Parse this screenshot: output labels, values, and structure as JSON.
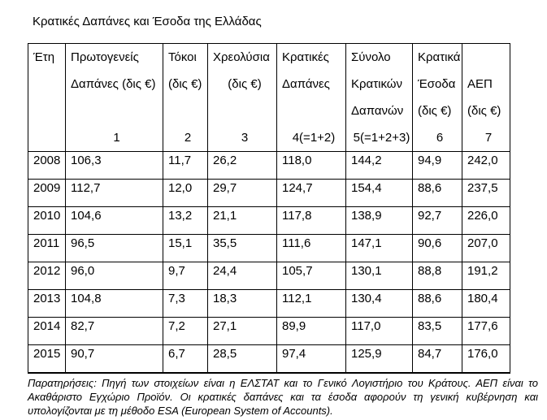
{
  "page": {
    "title": "Κρατικές Δαπάνες και Έσοδα της Ελλάδας"
  },
  "table": {
    "header_columns": [
      {
        "name": "eth",
        "lines": [
          "Έτη",
          "",
          "",
          ""
        ]
      },
      {
        "name": "protogeneis-dapanes",
        "lines": [
          "Πρωτογενείς",
          "Δαπάνες (δις €)",
          "",
          "1"
        ]
      },
      {
        "name": "tokoi",
        "lines": [
          "Τόκοι",
          "(δις €)",
          "",
          "2"
        ]
      },
      {
        "name": "xreolysia",
        "lines": [
          "Χρεολύσια",
          "(δις €)",
          "",
          "3"
        ]
      },
      {
        "name": "kratikes-dapanes",
        "lines": [
          "Κρατικές",
          "Δαπάνες",
          "",
          "4(=1+2)"
        ]
      },
      {
        "name": "synolo-kratikon-dapanon",
        "lines": [
          "Σύνολο",
          "Κρατικών",
          "Δαπανών",
          "5(=1+2+3)"
        ]
      },
      {
        "name": "kratika-esoda",
        "lines": [
          "Κρατικά",
          "Έσοδα",
          "(δις €)",
          "6"
        ]
      },
      {
        "name": "aep",
        "lines": [
          "",
          "ΑΕΠ",
          "(δις €)",
          "7"
        ]
      }
    ],
    "rows": [
      [
        "2008",
        "106,3",
        "11,7",
        "26,2",
        "118,0",
        "144,2",
        "94,9",
        "242,0"
      ],
      [
        "2009",
        "112,7",
        "12,0",
        "29,7",
        "124,7",
        "154,4",
        "88,6",
        "237,5"
      ],
      [
        "2010",
        "104,6",
        "13,2",
        "21,1",
        "117,8",
        "138,9",
        "92,7",
        "226,0"
      ],
      [
        "2011",
        "96,5",
        "15,1",
        "35,5",
        "111,6",
        "147,1",
        "90,6",
        "207,0"
      ],
      [
        "2012",
        "96,0",
        "9,7",
        "24,4",
        "105,7",
        "130,1",
        "88,8",
        "191,2"
      ],
      [
        "2013",
        "104,8",
        "7,3",
        "18,3",
        "112,1",
        "130,4",
        "88,6",
        "180,4"
      ],
      [
        "2014",
        "82,7",
        "7,2",
        "27,1",
        "89,9",
        "117,0",
        "83,5",
        "177,6"
      ],
      [
        "2015",
        "90,7",
        "6,7",
        "28,5",
        "97,4",
        "125,9",
        "84,7",
        "176,0"
      ]
    ]
  },
  "notes": {
    "text": "Παρατηρήσεις:  Πηγή των στοιχείων είναι η ΕΛΣΤΑΤ και το Γενικό Λογιστήριο του Κράτους. ΑΕΠ είναι το Ακαθάριστο Εγχώριο Προϊόν.  Οι κρατικές δαπάνες και τα έσοδα αφορούν τη γενική κυβέρνηση και υπολογίζονται με τη μέθοδο ESA (European System of Accounts)."
  },
  "colors": {
    "text": "#000000",
    "border": "#000000",
    "background": "#ffffff"
  }
}
